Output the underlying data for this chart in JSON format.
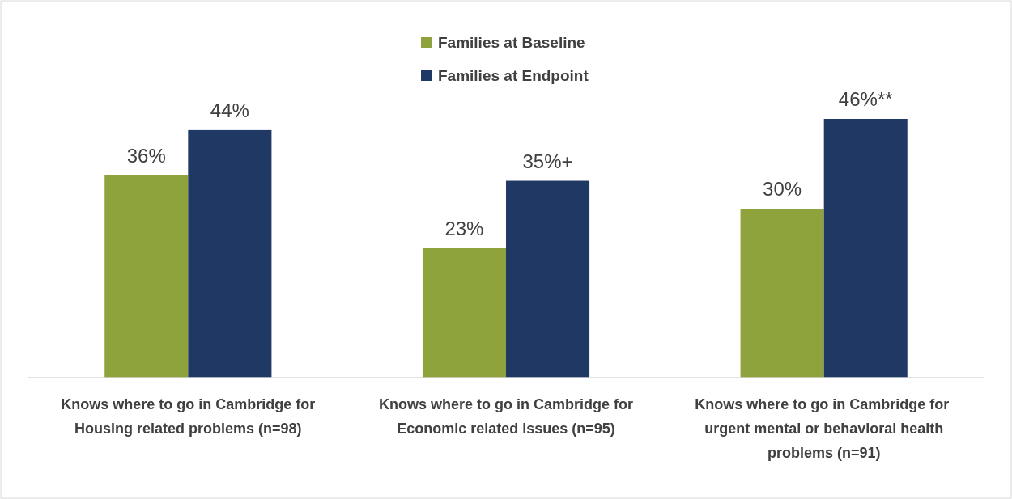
{
  "chart_data": {
    "type": "bar",
    "categories": [
      "Knows where to go in Cambridge for Housing related problems (n=98)",
      "Knows where to go in Cambridge for Economic related issues (n=95)",
      "Knows where to go in Cambridge for  urgent mental or behavioral health problems (n=91)"
    ],
    "series": [
      {
        "name": "Families at Baseline",
        "color": "#8ea33b",
        "values": [
          36,
          23,
          30
        ],
        "value_labels": [
          "36%",
          "23%",
          "30%"
        ]
      },
      {
        "name": "Families at Endpoint",
        "color": "#203864",
        "values": [
          44,
          35,
          46
        ],
        "value_labels": [
          "44%",
          "35%+",
          "46%**"
        ]
      }
    ],
    "relative": false,
    "legend": "top"
  }
}
